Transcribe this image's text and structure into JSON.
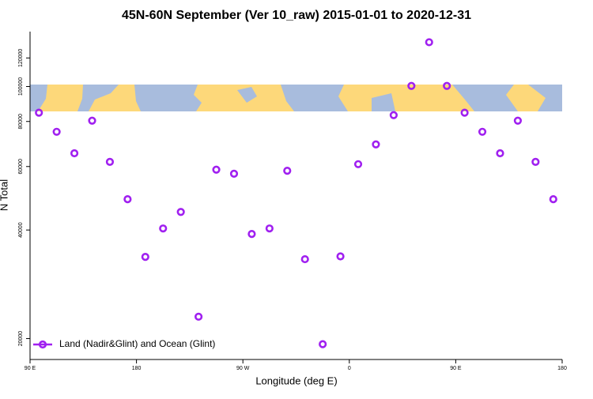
{
  "chart_data": {
    "type": "scatter",
    "title": "45N-60N September (Ver 10_raw)   2015-01-01 to 2020-12-31",
    "x_label": "Longitude (deg E)",
    "y_label": "N Total",
    "xlim": [
      90,
      540
    ],
    "xticks": [
      {
        "value": 90,
        "label": "90 E"
      },
      {
        "value": 180,
        "label": "180"
      },
      {
        "value": 270,
        "label": "90 W"
      },
      {
        "value": 360,
        "label": "0"
      },
      {
        "value": 450,
        "label": "90 E"
      },
      {
        "value": 540,
        "label": "180"
      }
    ],
    "ylim": [
      17500,
      142000
    ],
    "y_log": true,
    "yticks": [
      20000,
      40000,
      60000,
      80000,
      100000,
      120000
    ],
    "grid": false,
    "legend": "bottom-left",
    "x": [
      97.5,
      112.5,
      127.5,
      142.5,
      157.5,
      172.5,
      187.5,
      202.5,
      217.5,
      232.5,
      247.5,
      262.5,
      277.5,
      292.5,
      307.5,
      322.5,
      337.5,
      352.5,
      367.5,
      382.5,
      397.5,
      412.5,
      427.5,
      442.5,
      457.5,
      472.5,
      487.5,
      502.5,
      517.5,
      532.5
    ],
    "series": [
      {
        "name": "Land (Nadir&Glint) and Ocean (Glint)",
        "color": "#a020f0",
        "values": [
          84600,
          74900,
          65300,
          80400,
          61800,
          48700,
          33700,
          40400,
          44900,
          23000,
          58800,
          57300,
          39000,
          40400,
          58400,
          33200,
          19300,
          33800,
          60900,
          69100,
          83300,
          100400,
          132700,
          100400,
          84600,
          74900,
          65300,
          80400,
          61800,
          48700
        ]
      }
    ]
  }
}
